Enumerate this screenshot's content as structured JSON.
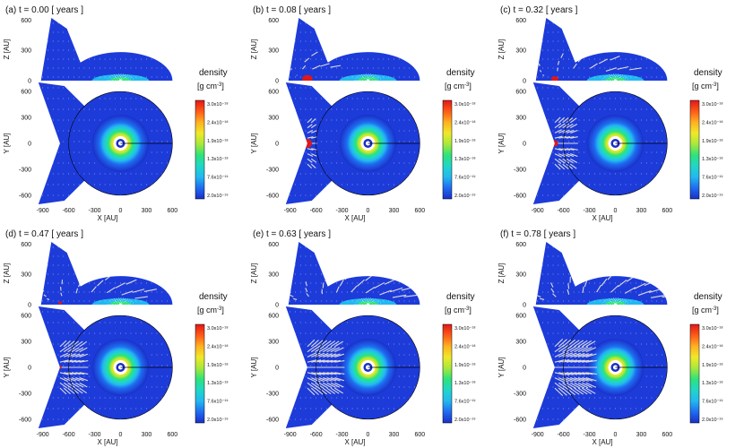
{
  "figure": {
    "axis_labels": {
      "x": "X [AU]",
      "y": "Y [AU]",
      "z": "Z [AU]"
    },
    "x_ticks": [
      "-900",
      "-600",
      "-300",
      "0",
      "300",
      "600"
    ],
    "y_ticks": [
      "600",
      "300",
      "0",
      "-300",
      "-600"
    ],
    "z_ticks": [
      "600",
      "300",
      "0"
    ],
    "colorbar": {
      "title": "density",
      "unit_base": "[g cm",
      "unit_exp": "-3",
      "unit_close": "]",
      "ticks": [
        "3.0x10⁻¹⁸",
        "2.4x10⁻¹⁸",
        "1.9x10⁻¹⁸",
        "1.3x10⁻¹⁸",
        "7.6x10⁻¹⁹",
        "2.0x10⁻¹⁹"
      ]
    },
    "panels": [
      {
        "label": "(a) t = 0.00 [ years ]",
        "time_years": 0.0,
        "clump_x_au": -700,
        "clump_radius_au": 0
      },
      {
        "label": "(b) t = 0.08 [ years ]",
        "time_years": 0.08,
        "clump_x_au": -700,
        "clump_radius_au": 40
      },
      {
        "label": "(c) t = 0.32 [ years ]",
        "time_years": 0.32,
        "clump_x_au": -700,
        "clump_radius_au": 28
      },
      {
        "label": "(d) t = 0.47 [ years ]",
        "time_years": 0.47,
        "clump_x_au": -700,
        "clump_radius_au": 14
      },
      {
        "label": "(e) t = 0.63 [ years ]",
        "time_years": 0.63,
        "clump_x_au": -700,
        "clump_radius_au": 0
      },
      {
        "label": "(f) t = 0.78 [ years ]",
        "time_years": 0.78,
        "clump_x_au": -700,
        "clump_radius_au": 0
      }
    ],
    "colors": {
      "background_field": "#1d3bd9",
      "colormap": [
        "#1a2fc8",
        "#1f6cf0",
        "#22b8f0",
        "#20d6c8",
        "#2ee37a",
        "#a8e83a",
        "#f0e82a",
        "#ffb020",
        "#ff5a18",
        "#e01818"
      ],
      "arrow": "#dcdcdc"
    }
  }
}
